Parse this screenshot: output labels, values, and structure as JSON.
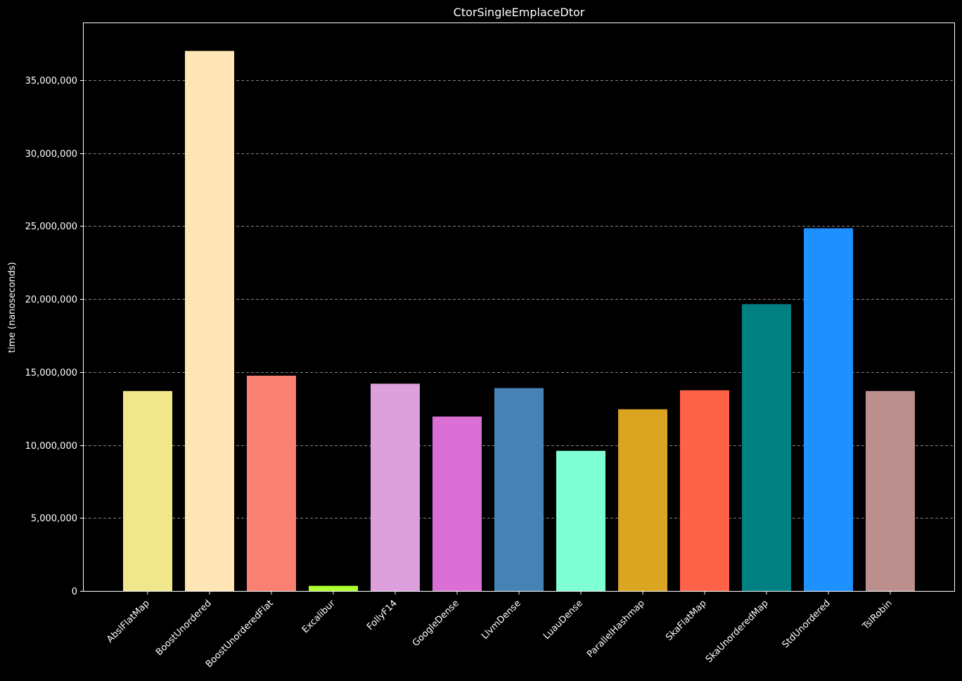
{
  "chart_data": {
    "type": "bar",
    "title": "CtorSingleEmplaceDtor",
    "xlabel": "",
    "ylabel": "time (nanoseconds)",
    "ylim": [
      0,
      38900000
    ],
    "yticks": [
      0,
      5000000,
      10000000,
      15000000,
      20000000,
      25000000,
      30000000,
      35000000
    ],
    "ytick_labels": [
      "0",
      "5,000,000",
      "10,000,000",
      "15,000,000",
      "20,000,000",
      "25,000,000",
      "30,000,000",
      "35,000,000"
    ],
    "grid": "horizontal dashed",
    "categories": [
      "AbslFlatMap",
      "BoostUnordered",
      "BoostUnorderedFlat",
      "Excalibur",
      "FollyF14",
      "GoogleDense",
      "LlvmDense",
      "LuauDense",
      "ParallelHashmap",
      "SkaFlatMap",
      "SkaUnorderedMap",
      "StdUnordered",
      "TslRobin"
    ],
    "values": [
      13700000,
      37000000,
      14750000,
      350000,
      14200000,
      11950000,
      13900000,
      9600000,
      12450000,
      13750000,
      19650000,
      24850000,
      13700000
    ],
    "colors": [
      "#F0E68C",
      "#FFE4B5",
      "#FA8072",
      "#ADFF2F",
      "#DDA0DD",
      "#DA70D6",
      "#4682B4",
      "#7FFFD4",
      "#DAA520",
      "#FF6347",
      "#008080",
      "#1E90FF",
      "#BC8F8F"
    ]
  }
}
